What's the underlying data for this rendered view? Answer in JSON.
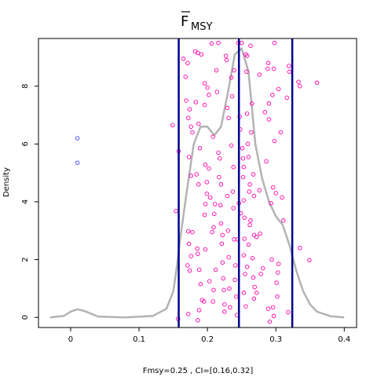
{
  "chart_data": {
    "type": "scatter",
    "title": "F",
    "title_subscript": "MSY",
    "title_overline": true,
    "xlabel": "Fmsy=0.25 , CI=[0.16,0.32]",
    "ylabel": "Density",
    "xlim": [
      -0.047,
      0.418
    ],
    "ylim": [
      -0.35,
      9.65
    ],
    "x_ticks": [
      0,
      0.1,
      0.2,
      0.3,
      0.4
    ],
    "x_tick_labels": [
      "0",
      "0.1",
      "0.2",
      "0.3",
      "0.4"
    ],
    "y_ticks": [
      0,
      2,
      4,
      6,
      8
    ],
    "y_tick_labels": [
      "0",
      "2",
      "4",
      "6",
      "8"
    ],
    "vertical_lines": [
      0.158,
      0.246,
      0.324
    ],
    "vline_color": "#00008b",
    "density_color": "#b3b3b3",
    "density_curve": {
      "x": [
        -0.03,
        -0.01,
        0.0,
        0.01,
        0.02,
        0.04,
        0.08,
        0.12,
        0.14,
        0.15,
        0.155,
        0.16,
        0.17,
        0.18,
        0.19,
        0.2,
        0.21,
        0.22,
        0.23,
        0.24,
        0.25,
        0.26,
        0.27,
        0.28,
        0.29,
        0.3,
        0.31,
        0.32,
        0.33,
        0.34,
        0.35,
        0.36,
        0.38,
        0.4
      ],
      "y": [
        0.0,
        0.05,
        0.2,
        0.28,
        0.22,
        0.03,
        0.0,
        0.05,
        0.3,
        0.9,
        1.7,
        2.7,
        4.4,
        6.0,
        6.6,
        6.6,
        6.3,
        6.6,
        7.8,
        9.1,
        9.3,
        8.5,
        6.0,
        4.8,
        4.0,
        3.5,
        3.2,
        2.5,
        1.6,
        0.9,
        0.45,
        0.2,
        0.04,
        0.0
      ]
    },
    "series": [
      {
        "color": "#ff00aa",
        "points": [
          [
            0.149,
            6.65
          ],
          [
            0.157,
            -0.05
          ],
          [
            0.154,
            3.68
          ],
          [
            0.158,
            5.75
          ],
          [
            0.165,
            8.95
          ],
          [
            0.168,
            8.32
          ],
          [
            0.171,
            8.8
          ],
          [
            0.169,
            7.5
          ],
          [
            0.172,
            6.9
          ],
          [
            0.174,
            7.2
          ],
          [
            0.176,
            6.6
          ],
          [
            0.178,
            6.4
          ],
          [
            0.173,
            5.55
          ],
          [
            0.176,
            4.9
          ],
          [
            0.172,
            2.98
          ],
          [
            0.178,
            2.95
          ],
          [
            0.173,
            2.55
          ],
          [
            0.176,
            2.12
          ],
          [
            0.171,
            1.8
          ],
          [
            0.174,
            1.62
          ],
          [
            0.172,
            0.12
          ],
          [
            0.182,
            9.2
          ],
          [
            0.186,
            9.15
          ],
          [
            0.191,
            9.1
          ],
          [
            0.183,
            7.45
          ],
          [
            0.187,
            6.7
          ],
          [
            0.189,
            5.85
          ],
          [
            0.184,
            4.95
          ],
          [
            0.187,
            4.6
          ],
          [
            0.185,
            2.38
          ],
          [
            0.186,
            2.2
          ],
          [
            0.188,
            1.65
          ],
          [
            0.19,
            1.15
          ],
          [
            0.192,
            0.6
          ],
          [
            0.188,
            0.25
          ],
          [
            0.186,
            -0.1
          ],
          [
            0.196,
            8.1
          ],
          [
            0.196,
            7.35
          ],
          [
            0.197,
            5.28
          ],
          [
            0.199,
            4.68
          ],
          [
            0.199,
            4.28
          ],
          [
            0.197,
            3.92
          ],
          [
            0.196,
            3.55
          ],
          [
            0.197,
            2.35
          ],
          [
            0.195,
            0.55
          ],
          [
            0.2,
            7.95
          ],
          [
            0.202,
            7.7
          ],
          [
            0.202,
            5.15
          ],
          [
            0.204,
            4.15
          ],
          [
            0.203,
            1.25
          ],
          [
            0.208,
            6.25
          ],
          [
            0.207,
            2.95
          ],
          [
            0.211,
            3.92
          ],
          [
            0.21,
            3.58
          ],
          [
            0.209,
            3.12
          ],
          [
            0.212,
            1.65
          ],
          [
            0.209,
            0.95
          ],
          [
            0.208,
            0.55
          ],
          [
            0.206,
            9.48
          ],
          [
            0.213,
            8.55
          ],
          [
            0.214,
            7.8
          ],
          [
            0.216,
            9.5
          ],
          [
            0.216,
            5.7
          ],
          [
            0.218,
            5.5
          ],
          [
            0.217,
            4.85
          ],
          [
            0.22,
            4.6
          ],
          [
            0.219,
            3.88
          ],
          [
            0.22,
            3.25
          ],
          [
            0.222,
            2.85
          ],
          [
            0.221,
            2.55
          ],
          [
            0.222,
            1.9
          ],
          [
            0.223,
            1.35
          ],
          [
            0.224,
            0.95
          ],
          [
            0.225,
            0.45
          ],
          [
            0.225,
            0.2
          ],
          [
            0.227,
            9.05
          ],
          [
            0.228,
            8.9
          ],
          [
            0.229,
            7.25
          ],
          [
            0.231,
            6.9
          ],
          [
            0.229,
            4.2
          ],
          [
            0.23,
            3.0
          ],
          [
            0.231,
            2.08
          ],
          [
            0.232,
            1.0
          ],
          [
            0.233,
            0.35
          ],
          [
            0.235,
            8.3
          ],
          [
            0.236,
            7.65
          ],
          [
            0.235,
            5.95
          ],
          [
            0.238,
            5.2
          ],
          [
            0.237,
            4.35
          ],
          [
            0.238,
            3.78
          ],
          [
            0.239,
            2.7
          ],
          [
            0.241,
            1.8
          ],
          [
            0.24,
            1.3
          ],
          [
            0.242,
            0.72
          ],
          [
            0.243,
            0.08
          ],
          [
            0.239,
            8.55
          ],
          [
            0.245,
            9.5
          ],
          [
            0.244,
            2.7
          ],
          [
            0.246,
            3.95
          ],
          [
            0.247,
            6.95
          ],
          [
            0.248,
            6.5
          ],
          [
            0.249,
            3.6
          ],
          [
            0.25,
            9.5
          ],
          [
            0.251,
            5.85
          ],
          [
            0.252,
            5.5
          ],
          [
            0.253,
            5.2
          ],
          [
            0.252,
            4.85
          ],
          [
            0.253,
            4.05
          ],
          [
            0.254,
            3.45
          ],
          [
            0.254,
            2.72
          ],
          [
            0.253,
            2.15
          ],
          [
            0.255,
            1.5
          ],
          [
            0.253,
            0.85
          ],
          [
            0.256,
            9.1
          ],
          [
            0.258,
            9.05
          ],
          [
            0.259,
            6.0
          ],
          [
            0.257,
            8.5
          ],
          [
            0.258,
            7.05
          ],
          [
            0.26,
            5.55
          ],
          [
            0.261,
            4.35
          ],
          [
            0.262,
            4.6
          ],
          [
            0.263,
            3.35
          ],
          [
            0.262,
            3.2
          ],
          [
            0.26,
            2.52
          ],
          [
            0.258,
            1.75
          ],
          [
            0.256,
            0.38
          ],
          [
            0.263,
            9.4
          ],
          [
            0.265,
            7.4
          ],
          [
            0.264,
            6.4
          ],
          [
            0.267,
            4.95
          ],
          [
            0.268,
            4.2
          ],
          [
            0.268,
            2.85
          ],
          [
            0.266,
            2.05
          ],
          [
            0.267,
            1.38
          ],
          [
            0.269,
            1.05
          ],
          [
            0.268,
            0.65
          ],
          [
            0.272,
            2.78
          ],
          [
            0.272,
            0.85
          ],
          [
            0.276,
            8.4
          ],
          [
            0.276,
            4.4
          ],
          [
            0.277,
            2.9
          ],
          [
            0.278,
            1.5
          ],
          [
            0.281,
            1.7
          ],
          [
            0.284,
            7.1
          ],
          [
            0.286,
            5.4
          ],
          [
            0.288,
            8.6
          ],
          [
            0.289,
            8.8
          ],
          [
            0.29,
            7.4
          ],
          [
            0.29,
            6.85
          ],
          [
            0.289,
            0.3
          ],
          [
            0.291,
            -0.15
          ],
          [
            0.293,
            3.95
          ],
          [
            0.294,
            2.0
          ],
          [
            0.295,
            7.7
          ],
          [
            0.296,
            4.5
          ],
          [
            0.296,
            0.35
          ],
          [
            0.297,
            0.05
          ],
          [
            0.297,
            8.6
          ],
          [
            0.298,
            6.1
          ],
          [
            0.298,
            9.5
          ],
          [
            0.3,
            4.3
          ],
          [
            0.301,
            1.2
          ],
          [
            0.302,
            0.72
          ],
          [
            0.303,
            1.55
          ],
          [
            0.304,
            7.9
          ],
          [
            0.304,
            1.85
          ],
          [
            0.307,
            6.4
          ],
          [
            0.309,
            4.15
          ],
          [
            0.311,
            3.35
          ],
          [
            0.316,
            7.6
          ],
          [
            0.319,
            8.7
          ],
          [
            0.32,
            8.5
          ],
          [
            0.318,
            0.18
          ],
          [
            0.333,
            8.15
          ],
          [
            0.335,
            8.0
          ],
          [
            0.335,
            2.4
          ],
          [
            0.349,
            1.98
          ],
          [
            0.36,
            8.12
          ]
        ]
      },
      {
        "color": "#4444ff",
        "points": [
          [
            0.01,
            6.2
          ],
          [
            0.01,
            5.35
          ]
        ]
      }
    ],
    "grid": false,
    "legend": "none"
  }
}
